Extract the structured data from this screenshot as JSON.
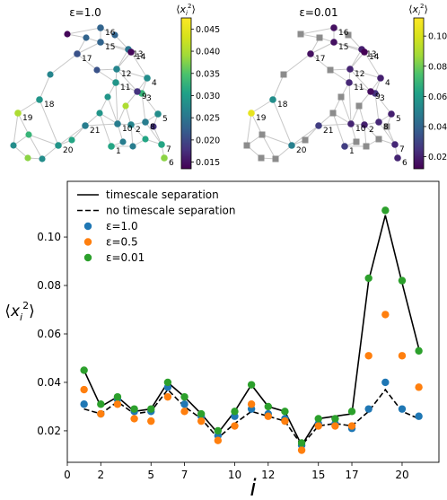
{
  "colors": {
    "timescale_line": "#000000",
    "no_timescale_line": "#000000",
    "eps1": "#1f77b4",
    "eps05": "#ff7f0e",
    "eps001": "#2ca02c",
    "edge": "#c8c8c8",
    "gray_node": "#8c8c8c"
  },
  "networks": [
    {
      "title": "ε=1.0",
      "colorbar_label": "⟨x_i²⟩",
      "colorbar_ticks": [
        "0.045",
        "0.040",
        "0.035",
        "0.030",
        "0.025",
        "0.020",
        "0.015"
      ],
      "colorbar_range": [
        0.0135,
        0.0475
      ]
    },
    {
      "title": "ε=0.01",
      "colorbar_label": "⟨x_i²⟩",
      "colorbar_ticks": [
        "0.10",
        "0.08",
        "0.06",
        "0.04",
        "0.02"
      ],
      "colorbar_range": [
        0.012,
        0.112
      ]
    }
  ],
  "chart_data": {
    "type": "line",
    "title": "",
    "xlabel": "i",
    "ylabel": "⟨x_i²⟩",
    "xlim": [
      0,
      22.2
    ],
    "ylim": [
      0.007,
      0.123
    ],
    "xticks": [
      0,
      2,
      5,
      7,
      10,
      12,
      15,
      17,
      20
    ],
    "xtick_labels": [
      "0",
      "2",
      "5",
      "7",
      "10",
      "12",
      "15",
      "17",
      "20"
    ],
    "yticks": [
      0.02,
      0.04,
      0.06,
      0.08,
      0.1
    ],
    "ytick_labels": [
      "0.02",
      "0.04",
      "0.06",
      "0.08",
      "0.10"
    ],
    "grid": false,
    "legend_position": "top-left",
    "x": [
      1,
      2,
      3,
      4,
      5,
      6,
      7,
      8,
      9,
      10,
      11,
      12,
      13,
      14,
      15,
      16,
      17,
      18,
      19,
      20,
      21
    ],
    "series": [
      {
        "name": "timescale separation",
        "style": "solid",
        "color": "#000000",
        "values": [
          0.045,
          0.03,
          0.034,
          0.028,
          0.029,
          0.04,
          0.034,
          0.027,
          0.019,
          0.028,
          0.039,
          0.03,
          0.028,
          0.014,
          0.025,
          0.026,
          0.027,
          0.082,
          0.109,
          0.081,
          0.054
        ]
      },
      {
        "name": "no timescale separation",
        "style": "dashed",
        "color": "#000000",
        "values": [
          0.029,
          0.027,
          0.032,
          0.027,
          0.028,
          0.037,
          0.03,
          0.025,
          0.017,
          0.023,
          0.028,
          0.026,
          0.024,
          0.014,
          0.022,
          0.023,
          0.022,
          0.028,
          0.037,
          0.028,
          0.025
        ]
      },
      {
        "name": "ε=1.0",
        "style": "marker",
        "color": "#1f77b4",
        "values": [
          0.031,
          0.027,
          0.033,
          0.028,
          0.028,
          0.038,
          0.031,
          0.026,
          0.018,
          0.026,
          0.029,
          0.027,
          0.025,
          0.014,
          0.023,
          0.023,
          0.021,
          0.029,
          0.04,
          0.029,
          0.026
        ]
      },
      {
        "name": "ε=0.5",
        "style": "marker",
        "color": "#ff7f0e",
        "values": [
          0.037,
          0.027,
          0.031,
          0.025,
          0.024,
          0.034,
          0.028,
          0.024,
          0.016,
          0.022,
          0.031,
          0.026,
          0.024,
          0.012,
          0.022,
          0.022,
          0.022,
          0.051,
          0.068,
          0.051,
          0.038
        ]
      },
      {
        "name": "ε=0.01",
        "style": "marker",
        "color": "#2ca02c",
        "values": [
          0.045,
          0.031,
          0.034,
          0.029,
          0.029,
          0.04,
          0.034,
          0.027,
          0.02,
          0.028,
          0.039,
          0.03,
          0.028,
          0.015,
          0.025,
          0.025,
          0.028,
          0.083,
          0.111,
          0.082,
          0.053
        ]
      }
    ]
  }
}
